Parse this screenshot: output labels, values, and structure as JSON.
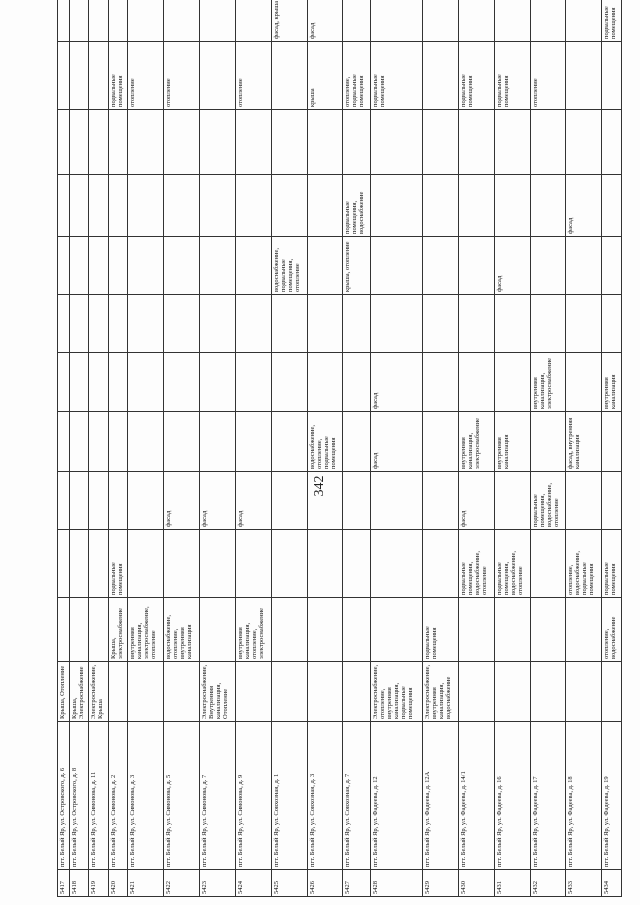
{
  "page_number": "342",
  "table": {
    "rows": [
      [
        "5417",
        "пгт. Белый Яр, ул. Островского, д. 6",
        "Крыша, Отопление",
        null,
        null,
        null,
        null,
        null,
        null,
        null,
        null,
        null,
        null,
        null
      ],
      [
        "5418",
        "пгт. Белый Яр, ул. Островского, д. 8",
        "Крыша, Электроснабжение",
        null,
        null,
        null,
        null,
        null,
        null,
        null,
        null,
        null,
        null,
        null
      ],
      [
        "5419",
        "пгт. Белый Яр, ул. Симонова, д. 11",
        "Электроснабжение, Крыша",
        null,
        null,
        null,
        null,
        null,
        null,
        null,
        null,
        null,
        null,
        null
      ],
      [
        "5420",
        "пгт. Белый Яр, ул. Симонова, д. 2",
        null,
        "Крыша, электроснабжение",
        "подвальные помещения",
        null,
        null,
        null,
        null,
        null,
        null,
        null,
        "подвальные помещения",
        null
      ],
      [
        "5421",
        "пгт. Белый Яр, ул. Симонова, д. 3",
        null,
        "внутренняя канализация, электроснабжение, отопление",
        null,
        null,
        null,
        null,
        null,
        null,
        null,
        null,
        "отопление",
        null
      ],
      [
        "5422",
        "пгт. Белый Яр, ул. Симонова, д. 5",
        null,
        "водоснабжение, отопление, внутренняя канализация",
        null,
        "фасад",
        null,
        null,
        null,
        null,
        null,
        null,
        "отопление",
        null
      ],
      [
        "5423",
        "пгт. Белый Яр, ул. Симонова, д. 7",
        "Электроснабжение, Внутренняя канализация, Отопление",
        null,
        null,
        "фасад",
        null,
        null,
        null,
        null,
        null,
        null,
        null,
        null
      ],
      [
        "5424",
        "пгт. Белый Яр, ул. Симонова, д. 9",
        null,
        "внутренняя канализация, отопление, электроснабжение",
        null,
        "фасад",
        null,
        null,
        null,
        null,
        null,
        null,
        "отопление",
        null
      ],
      [
        "5425",
        "пгт. Белый Яр, ул. Совхозная, д. 1",
        null,
        null,
        null,
        null,
        null,
        null,
        null,
        "водоснабжение, подвальные помещения, отопление",
        null,
        null,
        null,
        "фасад, крыша"
      ],
      [
        "5426",
        "пгт. Белый Яр, ул. Совхозная, д. 3",
        null,
        null,
        null,
        null,
        "водоснабжение, отопление, подвальные помещения",
        null,
        null,
        null,
        null,
        null,
        "крыша",
        "фасад"
      ],
      [
        "5427",
        "пгт. Белый Яр, ул. Совхозная, д. 7",
        null,
        null,
        null,
        null,
        null,
        null,
        null,
        "крыша, отопление",
        "подвальные помещения, водоснабжение",
        null,
        "отопление, подвальные помещения",
        null
      ],
      [
        "5428",
        "пгт. Белый Яр, ул. Фадеева, д. 12",
        "Электроснабжение, отопление, внутренняя канализация, подвальные помещения",
        null,
        null,
        null,
        "фасад",
        "фасад",
        null,
        null,
        null,
        null,
        "подвальные помещения",
        null
      ],
      [
        "5429",
        "пгт. Белый Яр, ул. Фадеева, д. 12А",
        "Электроснабжение, внутренняя канализация, водоснабжение",
        "подвальные помещения",
        null,
        null,
        null,
        null,
        null,
        null,
        null,
        null,
        null,
        null
      ],
      [
        "5430",
        "пгт. Белый Яр, ул. Фадеева, д. 14/1",
        null,
        null,
        "подвальные помещения, водоснабжение, отопление",
        "фасад",
        "внутренняя канализация, электроснабжение",
        null,
        null,
        null,
        null,
        null,
        "подвальные помещения",
        null
      ],
      [
        "5431",
        "пгт. Белый Яр, ул. Фадеева, д. 16",
        null,
        null,
        "подвальные помещения, водоснабжение, отопление",
        null,
        "внутренняя канализация",
        null,
        null,
        "фасад",
        null,
        null,
        "подвальные помещения",
        null
      ],
      [
        "5432",
        "пгт. Белый Яр, ул. Фадеева, д. 17",
        null,
        null,
        null,
        "подвальные помещения, водоснабжение, отопление",
        null,
        "внутренняя канализация, электроснабжение",
        null,
        null,
        null,
        null,
        "отопление",
        null
      ],
      [
        "5433",
        "пгт. Белый Яр, ул. Фадеева, д. 18",
        null,
        null,
        "отопление, водоснабжение, подвальные помещения",
        null,
        "фасад, внутренняя канализация",
        null,
        null,
        null,
        "фасад",
        null,
        null,
        null
      ],
      [
        "5434",
        "пгт. Белый Яр, ул. Фадеева, д. 19",
        null,
        "отопление, водоснабжение",
        "подвальные помещения",
        null,
        null,
        "внутренняя канализация",
        null,
        null,
        null,
        null,
        null,
        "подвальные помещения"
      ]
    ]
  }
}
